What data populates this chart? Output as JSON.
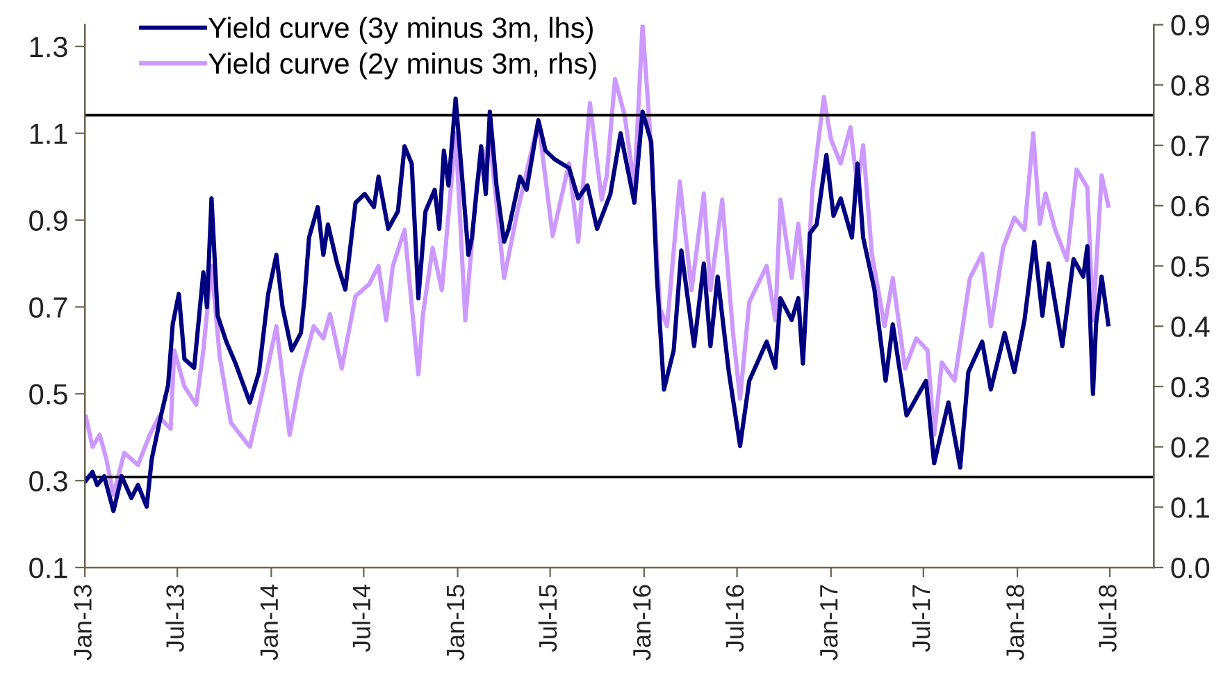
{
  "chart_data": {
    "type": "line",
    "xlim": [
      "2013-01-01",
      "2018-09-25"
    ],
    "xticks": [
      {
        "value": "2013-01-01",
        "label": "Jan-13"
      },
      {
        "value": "2013-07-01",
        "label": "Jul-13"
      },
      {
        "value": "2014-01-01",
        "label": "Jan-14"
      },
      {
        "value": "2014-07-01",
        "label": "Jul-14"
      },
      {
        "value": "2015-01-01",
        "label": "Jan-15"
      },
      {
        "value": "2015-07-01",
        "label": "Jul-15"
      },
      {
        "value": "2016-01-01",
        "label": "Jan-16"
      },
      {
        "value": "2016-07-01",
        "label": "Jul-16"
      },
      {
        "value": "2017-01-01",
        "label": "Jan-17"
      },
      {
        "value": "2017-07-01",
        "label": "Jul-17"
      },
      {
        "value": "2018-01-01",
        "label": "Jan-18"
      },
      {
        "value": "2018-07-01",
        "label": "Jul-18"
      }
    ],
    "ylim": [
      0.1,
      1.35
    ],
    "yticks": [
      0.1,
      0.3,
      0.5,
      0.7,
      0.9,
      1.1,
      1.3
    ],
    "y2lim": [
      0.0,
      0.9
    ],
    "y2ticks": [
      {
        "value": 0.0,
        "label": "0.0"
      },
      0.1,
      0.2,
      0.3,
      0.4,
      0.5,
      0.6,
      0.7,
      0.8,
      0.9
    ],
    "grid": false,
    "legend": "top left",
    "ref_lines": [
      {
        "axis": "y2",
        "value": 0.75,
        "color": "#000000"
      },
      {
        "axis": "y2",
        "value": 0.15,
        "color": "#000000"
      }
    ],
    "series": [
      {
        "name": "Yield curve (3y minus 3m, lhs)",
        "color": "#000080",
        "axis": "y",
        "x": [
          "2013-01-03",
          "2013-01-16",
          "2013-01-25",
          "2013-02-08",
          "2013-02-26",
          "2013-03-14",
          "2013-04-02",
          "2013-04-15",
          "2013-05-02",
          "2013-05-12",
          "2013-05-30",
          "2013-06-13",
          "2013-06-22",
          "2013-07-04",
          "2013-07-15",
          "2013-08-03",
          "2013-08-21",
          "2013-08-28",
          "2013-09-06",
          "2013-09-18",
          "2013-10-05",
          "2013-10-23",
          "2013-11-20",
          "2013-12-08",
          "2013-12-26",
          "2014-01-11",
          "2014-01-23",
          "2014-02-10",
          "2014-02-28",
          "2014-03-07",
          "2014-03-16",
          "2014-04-02",
          "2014-04-13",
          "2014-04-22",
          "2014-05-10",
          "2014-05-26",
          "2014-06-15",
          "2014-07-03",
          "2014-07-21",
          "2014-07-30",
          "2014-08-18",
          "2014-09-06",
          "2014-09-19",
          "2014-10-03",
          "2014-10-16",
          "2014-10-30",
          "2014-11-17",
          "2014-11-26",
          "2014-12-05",
          "2014-12-14",
          "2014-12-28",
          "2015-01-11",
          "2015-01-22",
          "2015-01-29",
          "2015-02-16",
          "2015-02-25",
          "2015-03-05",
          "2015-03-18",
          "2015-04-02",
          "2015-04-11",
          "2015-05-03",
          "2015-05-16",
          "2015-06-08",
          "2015-06-22",
          "2015-07-10",
          "2015-08-07",
          "2015-08-25",
          "2015-09-12",
          "2015-10-01",
          "2015-10-27",
          "2015-11-16",
          "2015-12-13",
          "2015-12-29",
          "2016-01-15",
          "2016-01-26",
          "2016-02-09",
          "2016-02-28",
          "2016-03-14",
          "2016-04-08",
          "2016-04-27",
          "2016-05-10",
          "2016-05-24",
          "2016-06-15",
          "2016-07-07",
          "2016-07-25",
          "2016-08-28",
          "2016-09-14",
          "2016-09-24",
          "2016-10-16",
          "2016-10-29",
          "2016-11-07",
          "2016-11-21",
          "2016-12-04",
          "2016-12-23",
          "2017-01-06",
          "2017-01-20",
          "2017-02-11",
          "2017-02-22",
          "2017-03-05",
          "2017-03-27",
          "2017-04-18",
          "2017-05-02",
          "2017-05-29",
          "2017-06-17",
          "2017-07-06",
          "2017-07-22",
          "2017-08-19",
          "2017-09-11",
          "2017-09-27",
          "2017-10-24",
          "2017-11-10",
          "2017-12-07",
          "2017-12-26",
          "2018-01-15",
          "2018-02-03",
          "2018-02-19",
          "2018-03-03",
          "2018-03-30",
          "2018-04-21",
          "2018-05-10",
          "2018-05-18",
          "2018-05-29",
          "2018-06-04",
          "2018-06-15",
          "2018-06-28"
        ],
        "values": [
          0.3,
          0.32,
          0.29,
          0.31,
          0.23,
          0.31,
          0.26,
          0.29,
          0.24,
          0.35,
          0.45,
          0.52,
          0.66,
          0.73,
          0.58,
          0.56,
          0.78,
          0.7,
          0.95,
          0.68,
          0.62,
          0.57,
          0.48,
          0.55,
          0.73,
          0.82,
          0.7,
          0.6,
          0.64,
          0.72,
          0.86,
          0.93,
          0.82,
          0.89,
          0.8,
          0.74,
          0.94,
          0.96,
          0.93,
          1.0,
          0.88,
          0.92,
          1.07,
          1.03,
          0.72,
          0.92,
          0.97,
          0.88,
          1.06,
          0.98,
          1.18,
          0.98,
          0.82,
          0.86,
          1.07,
          0.96,
          1.15,
          0.98,
          0.85,
          0.88,
          1.0,
          0.97,
          1.13,
          1.06,
          1.04,
          1.02,
          0.95,
          0.98,
          0.88,
          0.96,
          1.1,
          0.94,
          1.15,
          1.08,
          0.77,
          0.51,
          0.6,
          0.83,
          0.61,
          0.8,
          0.61,
          0.77,
          0.55,
          0.38,
          0.53,
          0.62,
          0.56,
          0.72,
          0.67,
          0.72,
          0.57,
          0.87,
          0.89,
          1.05,
          0.91,
          0.95,
          0.86,
          1.03,
          0.86,
          0.74,
          0.53,
          0.66,
          0.45,
          0.49,
          0.53,
          0.34,
          0.48,
          0.33,
          0.55,
          0.62,
          0.51,
          0.64,
          0.55,
          0.67,
          0.85,
          0.68,
          0.8,
          0.61,
          0.81,
          0.77,
          0.84,
          0.5,
          0.66,
          0.77,
          0.66
        ]
      },
      {
        "name": "Yield curve (2y minus 3m, rhs)",
        "color": "#cc99ff",
        "axis": "y2",
        "x": [
          "2013-01-03",
          "2013-01-16",
          "2013-01-30",
          "2013-02-12",
          "2013-02-26",
          "2013-03-19",
          "2013-04-15",
          "2013-05-08",
          "2013-05-26",
          "2013-06-18",
          "2013-06-25",
          "2013-07-15",
          "2013-08-07",
          "2013-08-21",
          "2013-09-06",
          "2013-09-22",
          "2013-10-14",
          "2013-11-20",
          "2013-12-17",
          "2014-01-11",
          "2014-02-06",
          "2014-02-28",
          "2014-03-25",
          "2014-04-13",
          "2014-04-26",
          "2014-05-19",
          "2014-06-15",
          "2014-07-12",
          "2014-07-30",
          "2014-08-14",
          "2014-08-27",
          "2014-09-19",
          "2014-10-16",
          "2014-10-25",
          "2014-11-13",
          "2014-12-01",
          "2014-12-28",
          "2015-01-16",
          "2015-02-08",
          "2015-03-05",
          "2015-04-02",
          "2015-04-28",
          "2015-06-08",
          "2015-07-06",
          "2015-08-07",
          "2015-08-25",
          "2015-09-17",
          "2015-10-10",
          "2015-10-20",
          "2015-11-05",
          "2015-11-24",
          "2015-12-13",
          "2015-12-29",
          "2016-01-12",
          "2016-02-01",
          "2016-02-15",
          "2016-03-11",
          "2016-04-03",
          "2016-04-27",
          "2016-05-10",
          "2016-06-02",
          "2016-06-23",
          "2016-07-07",
          "2016-07-25",
          "2016-08-28",
          "2016-09-14",
          "2016-09-24",
          "2016-10-16",
          "2016-10-29",
          "2016-11-13",
          "2016-11-26",
          "2016-12-18",
          "2017-01-01",
          "2017-01-20",
          "2017-02-08",
          "2017-02-22",
          "2017-03-05",
          "2017-03-22",
          "2017-04-16",
          "2017-05-02",
          "2017-05-26",
          "2017-06-17",
          "2017-07-09",
          "2017-07-22",
          "2017-08-06",
          "2017-08-31",
          "2017-09-16",
          "2017-09-30",
          "2017-10-24",
          "2017-11-10",
          "2017-12-04",
          "2017-12-26",
          "2018-01-15",
          "2018-02-01",
          "2018-02-14",
          "2018-02-25",
          "2018-03-16",
          "2018-04-08",
          "2018-04-27",
          "2018-05-18",
          "2018-05-29",
          "2018-06-15",
          "2018-06-28"
        ],
        "values": [
          0.25,
          0.2,
          0.22,
          0.18,
          0.12,
          0.19,
          0.17,
          0.22,
          0.25,
          0.23,
          0.36,
          0.3,
          0.27,
          0.36,
          0.5,
          0.35,
          0.24,
          0.2,
          0.3,
          0.4,
          0.22,
          0.32,
          0.4,
          0.38,
          0.42,
          0.33,
          0.45,
          0.47,
          0.5,
          0.41,
          0.5,
          0.56,
          0.32,
          0.42,
          0.53,
          0.46,
          0.72,
          0.41,
          0.64,
          0.71,
          0.48,
          0.59,
          0.74,
          0.55,
          0.67,
          0.54,
          0.77,
          0.61,
          0.65,
          0.81,
          0.75,
          0.63,
          0.9,
          0.73,
          0.43,
          0.4,
          0.64,
          0.46,
          0.62,
          0.46,
          0.61,
          0.39,
          0.28,
          0.44,
          0.5,
          0.41,
          0.61,
          0.48,
          0.57,
          0.44,
          0.63,
          0.78,
          0.71,
          0.67,
          0.73,
          0.63,
          0.7,
          0.52,
          0.4,
          0.48,
          0.33,
          0.38,
          0.36,
          0.22,
          0.34,
          0.31,
          0.4,
          0.48,
          0.52,
          0.4,
          0.53,
          0.58,
          0.56,
          0.72,
          0.57,
          0.62,
          0.56,
          0.51,
          0.66,
          0.63,
          0.41,
          0.65,
          0.6
        ]
      }
    ]
  }
}
